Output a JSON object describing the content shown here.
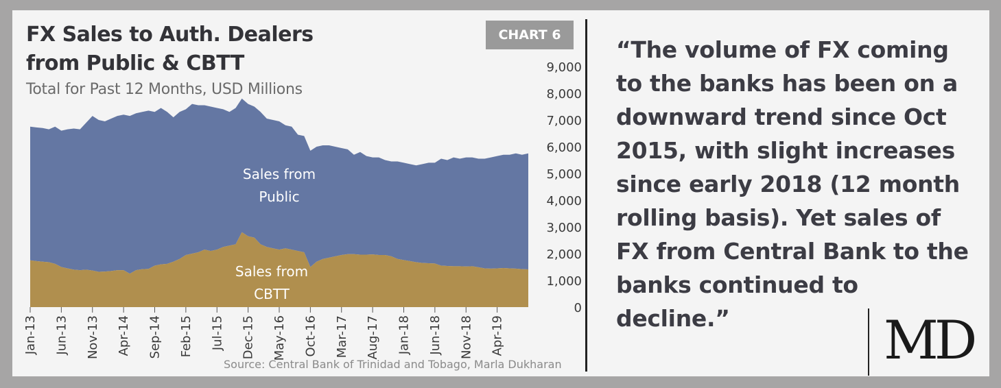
{
  "header": {
    "title_line1": "FX Sales to Auth. Dealers",
    "title_line2": "from Public & CBTT",
    "subtitle": "Total for Past 12 Months, USD Millions",
    "tag": "CHART 6"
  },
  "source": "Source: Central Bank of Trinidad and Tobago, Marla Dukharan",
  "quote": "“The volume of FX coming to the banks has been on a downward trend since Oct 2015, with slight increases since early 2018 (12 month rolling basis). Yet sales of FX from Central Bank to the banks continued to decline.”",
  "logo": "MD",
  "colors": {
    "public": "#6477a3",
    "cbtt": "#b08f4e",
    "background": "#f4f4f4",
    "frame": "#a6a5a5"
  },
  "chart_data": {
    "type": "area",
    "stacked": true,
    "y_tick_labels": [
      "0",
      "1,000",
      "2,000",
      "3,000",
      "4,000",
      "5,000",
      "6,000",
      "7,000",
      "8,000",
      "9,000"
    ],
    "ylim": [
      0,
      9000
    ],
    "x_tick_labels": [
      "Jan-13",
      "Jun-13",
      "Nov-13",
      "Apr-14",
      "Sep-14",
      "Feb-15",
      "Jul-15",
      "Dec-15",
      "May-16",
      "Oct-16",
      "Mar-17",
      "Aug-17",
      "Jan-18",
      "Jun-18",
      "Nov-18",
      "Apr-19"
    ],
    "x_start": "Jan-13",
    "x_end": "Jul-19",
    "grid": false,
    "series": [
      {
        "name": "Sales from CBTT",
        "label_line1": "Sales from",
        "label_line2": "CBTT",
        "values": [
          1750,
          1720,
          1700,
          1680,
          1620,
          1500,
          1450,
          1400,
          1380,
          1400,
          1370,
          1320,
          1330,
          1350,
          1380,
          1380,
          1250,
          1380,
          1420,
          1430,
          1550,
          1600,
          1620,
          1700,
          1800,
          1950,
          2000,
          2050,
          2150,
          2100,
          2150,
          2250,
          2300,
          2350,
          2800,
          2650,
          2600,
          2350,
          2250,
          2200,
          2150,
          2200,
          2150,
          2100,
          2050,
          1500,
          1700,
          1800,
          1850,
          1900,
          1950,
          1980,
          1980,
          1960,
          1960,
          1970,
          1950,
          1950,
          1900,
          1800,
          1760,
          1720,
          1680,
          1650,
          1640,
          1630,
          1550,
          1540,
          1530,
          1530,
          1520,
          1530,
          1490,
          1450,
          1440,
          1450,
          1460,
          1450,
          1440,
          1420,
          1410
        ]
      },
      {
        "name": "Sales from Public",
        "label_line1": "Sales from",
        "label_line2": "Public",
        "total_values": [
          6750,
          6720,
          6700,
          6650,
          6750,
          6600,
          6650,
          6680,
          6650,
          6900,
          7150,
          7000,
          6950,
          7050,
          7150,
          7200,
          7150,
          7250,
          7300,
          7350,
          7300,
          7450,
          7300,
          7100,
          7300,
          7400,
          7600,
          7550,
          7550,
          7500,
          7450,
          7400,
          7300,
          7450,
          7800,
          7600,
          7500,
          7300,
          7050,
          7000,
          6950,
          6800,
          6750,
          6450,
          6400,
          5850,
          6000,
          6050,
          6050,
          6000,
          5950,
          5900,
          5700,
          5800,
          5650,
          5600,
          5600,
          5500,
          5450,
          5450,
          5400,
          5350,
          5300,
          5350,
          5400,
          5400,
          5550,
          5500,
          5600,
          5550,
          5600,
          5600,
          5550,
          5550,
          5600,
          5650,
          5700,
          5700,
          5750,
          5700,
          5750
        ]
      }
    ]
  }
}
